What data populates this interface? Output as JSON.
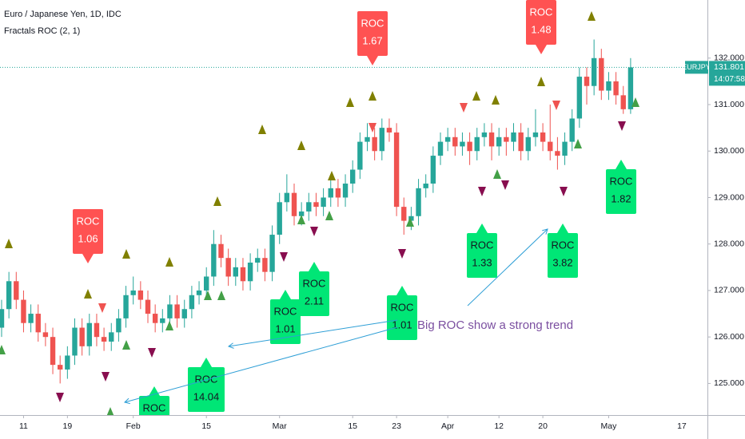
{
  "chart_data": {
    "type": "candlestick",
    "title": "Euro / Japanese Yen, 1D, IDC",
    "indicator": "Fractals ROC (2, 1)",
    "up_color": "#26a69a",
    "down_color": "#ef5350",
    "categories": [
      null,
      null,
      null,
      "11",
      null,
      null,
      null,
      null,
      null,
      "19",
      null,
      null,
      null,
      null,
      null,
      null,
      null,
      null,
      "Feb",
      null,
      null,
      null,
      null,
      null,
      null,
      null,
      null,
      null,
      "15",
      null,
      null,
      null,
      null,
      null,
      null,
      null,
      null,
      null,
      "Mar",
      null,
      null,
      null,
      null,
      null,
      null,
      null,
      null,
      null,
      "15",
      null,
      null,
      null,
      null,
      null,
      "23",
      null,
      null,
      null,
      null,
      null,
      null,
      "Apr",
      null,
      null,
      null,
      null,
      null,
      null,
      "12",
      null,
      null,
      null,
      null,
      null,
      "20",
      null,
      null,
      null,
      null,
      null,
      null,
      null,
      null,
      "May",
      null,
      null,
      null
    ],
    "future_xticks": [
      "17"
    ],
    "ohlc": [
      [
        126.2,
        126.8,
        126.0,
        126.6
      ],
      [
        126.6,
        127.4,
        126.4,
        127.2
      ],
      [
        127.2,
        127.4,
        126.6,
        126.8
      ],
      [
        126.8,
        127.0,
        126.1,
        126.3
      ],
      [
        126.3,
        126.7,
        126.1,
        126.5
      ],
      [
        126.5,
        126.7,
        125.9,
        126.1
      ],
      [
        126.1,
        126.3,
        125.8,
        126.0
      ],
      [
        126.0,
        126.2,
        125.2,
        125.4
      ],
      [
        125.4,
        125.6,
        125.0,
        125.3
      ],
      [
        125.3,
        125.8,
        125.1,
        125.6
      ],
      [
        125.6,
        126.4,
        125.4,
        126.2
      ],
      [
        126.2,
        126.4,
        125.6,
        125.8
      ],
      [
        125.8,
        126.5,
        125.6,
        126.3
      ],
      [
        126.3,
        126.5,
        125.8,
        126.0
      ],
      [
        126.0,
        126.2,
        125.7,
        125.9
      ],
      [
        125.9,
        126.3,
        125.7,
        126.1
      ],
      [
        126.1,
        126.6,
        125.9,
        126.4
      ],
      [
        126.4,
        127.1,
        126.2,
        126.9
      ],
      [
        126.9,
        127.3,
        126.7,
        127.0
      ],
      [
        127.0,
        127.2,
        126.6,
        126.8
      ],
      [
        126.8,
        127.0,
        126.3,
        126.5
      ],
      [
        126.5,
        126.7,
        126.1,
        126.3
      ],
      [
        126.3,
        126.6,
        126.1,
        126.4
      ],
      [
        126.4,
        126.9,
        126.2,
        126.7
      ],
      [
        126.7,
        126.9,
        126.2,
        126.4
      ],
      [
        126.4,
        126.8,
        126.2,
        126.6
      ],
      [
        126.6,
        127.1,
        126.4,
        126.9
      ],
      [
        126.9,
        127.2,
        126.7,
        127.0
      ],
      [
        127.0,
        127.5,
        126.8,
        127.3
      ],
      [
        127.3,
        128.3,
        127.1,
        128.0
      ],
      [
        128.0,
        128.2,
        127.5,
        127.7
      ],
      [
        127.7,
        127.9,
        127.1,
        127.3
      ],
      [
        127.3,
        127.7,
        127.1,
        127.5
      ],
      [
        127.5,
        127.7,
        127.0,
        127.2
      ],
      [
        127.2,
        127.8,
        127.0,
        127.6
      ],
      [
        127.6,
        127.9,
        127.4,
        127.7
      ],
      [
        127.7,
        127.9,
        127.2,
        127.4
      ],
      [
        127.4,
        128.4,
        127.2,
        128.2
      ],
      [
        128.2,
        129.1,
        128.0,
        128.9
      ],
      [
        128.9,
        129.5,
        128.7,
        129.1
      ],
      [
        129.1,
        129.3,
        128.4,
        128.6
      ],
      [
        128.6,
        128.9,
        128.4,
        128.7
      ],
      [
        128.7,
        129.1,
        128.5,
        128.9
      ],
      [
        128.9,
        129.1,
        128.6,
        128.8
      ],
      [
        128.8,
        129.2,
        128.6,
        129.0
      ],
      [
        129.0,
        129.4,
        128.8,
        129.2
      ],
      [
        129.2,
        129.4,
        128.8,
        129.0
      ],
      [
        129.0,
        129.5,
        128.8,
        129.3
      ],
      [
        129.3,
        129.8,
        129.1,
        129.6
      ],
      [
        129.6,
        130.4,
        129.4,
        130.2
      ],
      [
        130.2,
        130.6,
        130.0,
        130.3
      ],
      [
        130.3,
        130.5,
        129.8,
        130.0
      ],
      [
        130.0,
        130.7,
        129.8,
        130.5
      ],
      [
        130.5,
        130.7,
        130.2,
        130.4
      ],
      [
        130.4,
        130.6,
        128.6,
        128.8
      ],
      [
        128.8,
        129.0,
        128.2,
        128.5
      ],
      [
        128.5,
        128.8,
        128.3,
        128.6
      ],
      [
        128.6,
        129.4,
        128.4,
        129.2
      ],
      [
        129.2,
        129.5,
        129.0,
        129.3
      ],
      [
        129.3,
        130.1,
        129.1,
        129.9
      ],
      [
        129.9,
        130.4,
        129.7,
        130.2
      ],
      [
        130.2,
        130.5,
        130.0,
        130.3
      ],
      [
        130.3,
        130.5,
        129.9,
        130.1
      ],
      [
        130.1,
        130.4,
        129.9,
        130.2
      ],
      [
        130.2,
        130.4,
        129.7,
        130.0
      ],
      [
        130.0,
        130.5,
        129.8,
        130.3
      ],
      [
        130.3,
        130.6,
        130.1,
        130.4
      ],
      [
        130.4,
        130.6,
        129.8,
        130.1
      ],
      [
        130.1,
        130.5,
        129.9,
        130.3
      ],
      [
        130.3,
        130.5,
        129.9,
        130.2
      ],
      [
        130.2,
        130.6,
        130.0,
        130.4
      ],
      [
        130.4,
        130.6,
        129.8,
        130.0
      ],
      [
        130.0,
        130.5,
        129.8,
        130.3
      ],
      [
        130.3,
        130.9,
        130.1,
        130.4
      ],
      [
        130.4,
        130.6,
        130.0,
        130.2
      ],
      [
        130.2,
        131.0,
        129.8,
        130.0
      ],
      [
        130.0,
        130.3,
        129.6,
        129.9
      ],
      [
        129.9,
        130.4,
        129.7,
        130.2
      ],
      [
        130.2,
        130.9,
        130.0,
        130.7
      ],
      [
        130.7,
        131.8,
        130.5,
        131.6
      ],
      [
        131.6,
        131.8,
        131.0,
        131.4
      ],
      [
        131.4,
        132.4,
        131.2,
        132.0
      ],
      [
        132.0,
        132.2,
        131.1,
        131.3
      ],
      [
        131.3,
        131.7,
        131.1,
        131.5
      ],
      [
        131.5,
        131.7,
        131.0,
        131.2
      ],
      [
        131.2,
        131.4,
        130.8,
        130.9
      ],
      [
        130.9,
        132.0,
        130.8,
        131.8
      ]
    ],
    "ylim": [
      124.32,
      133.25
    ],
    "yticks": [
      {
        "value": 125,
        "label": "125.000"
      },
      {
        "value": 126,
        "label": "126.000"
      },
      {
        "value": 127,
        "label": "127.000"
      },
      {
        "value": 128,
        "label": "128.000"
      },
      {
        "value": 129,
        "label": "129.000"
      },
      {
        "value": 130,
        "label": "130.000"
      },
      {
        "value": 131,
        "label": "131.000"
      },
      {
        "value": 132,
        "label": "132.000"
      }
    ],
    "last_price": {
      "symbol": "EURJPY",
      "value": 131.801,
      "countdown": "14:07:58",
      "color": "#26a69a"
    },
    "annotations": [
      {
        "label": "ROC",
        "value": 1.06,
        "color": "#ff5252"
      },
      {
        "label": "ROC",
        "value": 1.67,
        "color": "#ff5252"
      },
      {
        "label": "ROC",
        "value": 1.48,
        "color": "#ff5252"
      },
      {
        "label": "ROC",
        "value": 1.82,
        "color": "#00e676"
      },
      {
        "label": "ROC",
        "value": 3.82,
        "color": "#00e676"
      },
      {
        "label": "ROC",
        "value": 1.33,
        "color": "#00e676"
      },
      {
        "label": "ROC",
        "value": 1.01,
        "color": "#00e676"
      },
      {
        "label": "ROC",
        "value": 2.11,
        "color": "#00e676"
      },
      {
        "label": "ROC",
        "value": 1.01,
        "color": "#00e676"
      },
      {
        "label": "ROC",
        "value": 14.04,
        "color": "#00e676"
      },
      {
        "label": "ROC",
        "color": "#00e676"
      }
    ],
    "note": "Big ROC show a strong trend"
  }
}
